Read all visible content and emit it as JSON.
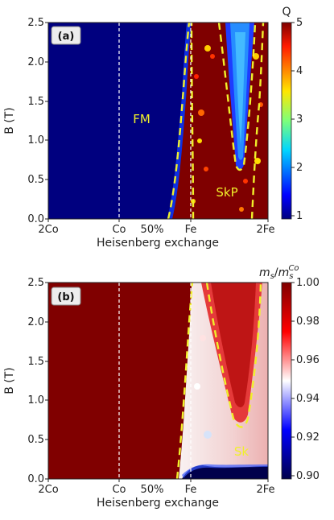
{
  "chart_data": [
    {
      "type": "heatmap",
      "panel_label": "(a)",
      "xlabel": "Heisenberg exchange",
      "ylabel": "B (T)",
      "ylim": [
        0,
        2.5
      ],
      "xticks": [
        "2Co",
        "Co",
        "50%",
        "Fe",
        "2Fe"
      ],
      "yticks": [
        "0.0",
        "0.5",
        "1.0",
        "1.5",
        "2.0",
        "2.5"
      ],
      "colorbar": {
        "title": "Q",
        "range": [
          1,
          5
        ],
        "ticks": [
          "1",
          "2",
          "3",
          "4",
          "5"
        ],
        "colormap": "jet"
      },
      "region_labels": [
        "FM",
        "SkP"
      ],
      "colors": {
        "low": "#00007f",
        "high": "#7f0000",
        "contour": "#f0f02a"
      }
    },
    {
      "type": "heatmap",
      "panel_label": "(b)",
      "xlabel": "Heisenberg exchange",
      "ylabel": "B (T)",
      "ylim": [
        0,
        2.5
      ],
      "xticks": [
        "2Co",
        "Co",
        "50%",
        "Fe",
        "2Fe"
      ],
      "yticks": [
        "0.0",
        "0.5",
        "1.0",
        "1.5",
        "2.0",
        "2.5"
      ],
      "colorbar": {
        "title_main": "m",
        "title_sub": "s",
        "title_slash": "/",
        "title_main2": "m",
        "title_sub2": "s",
        "title_sup2": "Co",
        "range": [
          0.9,
          1.0
        ],
        "ticks": [
          "0.90",
          "0.92",
          "0.94",
          "0.96",
          "0.98",
          "1.00"
        ],
        "colormap": "seismic"
      },
      "region_labels": [
        "Sk"
      ],
      "colors": {
        "low": "#00004c",
        "mid": "#ffffff",
        "high": "#800000",
        "contour": "#f0f02a"
      }
    }
  ]
}
